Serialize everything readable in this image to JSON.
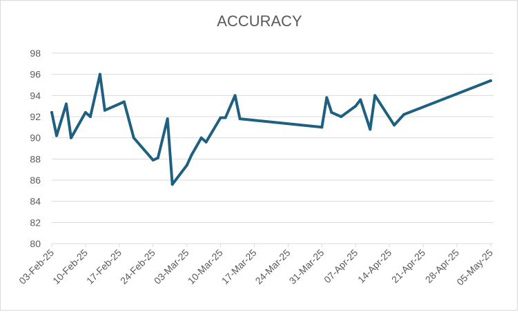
{
  "chart_data": {
    "type": "line",
    "title": "ACCURACY",
    "xlabel": "",
    "ylabel": "",
    "ylim": [
      80,
      98
    ],
    "y_ticks": [
      80,
      82,
      84,
      86,
      88,
      90,
      92,
      94,
      96,
      98
    ],
    "x_range": [
      "2025-02-03",
      "2025-05-05"
    ],
    "x_tick_labels": [
      "03-Feb-25",
      "10-Feb-25",
      "17-Feb-25",
      "24-Feb-25",
      "03-Mar-25",
      "10-Mar-25",
      "17-Mar-25",
      "24-Mar-25",
      "31-Mar-25",
      "07-Apr-25",
      "14-Apr-25",
      "21-Apr-25",
      "28-Apr-25",
      "05-May-25"
    ],
    "grid": true,
    "legend": "none",
    "series": [
      {
        "color": "#1f5f7f",
        "points": [
          [
            "2025-02-03",
            92.4
          ],
          [
            "2025-02-04",
            90.2
          ],
          [
            "2025-02-06",
            93.2
          ],
          [
            "2025-02-07",
            90.0
          ],
          [
            "2025-02-10",
            92.4
          ],
          [
            "2025-02-11",
            92.0
          ],
          [
            "2025-02-13",
            96.0
          ],
          [
            "2025-02-14",
            92.6
          ],
          [
            "2025-02-18",
            93.4
          ],
          [
            "2025-02-20",
            90.0
          ],
          [
            "2025-02-24",
            87.9
          ],
          [
            "2025-02-25",
            88.1
          ],
          [
            "2025-02-27",
            91.8
          ],
          [
            "2025-02-28",
            85.6
          ],
          [
            "2025-03-03",
            87.4
          ],
          [
            "2025-03-04",
            88.4
          ],
          [
            "2025-03-06",
            90.0
          ],
          [
            "2025-03-07",
            89.6
          ],
          [
            "2025-03-10",
            91.9
          ],
          [
            "2025-03-11",
            91.9
          ],
          [
            "2025-03-13",
            94.0
          ],
          [
            "2025-03-14",
            91.8
          ],
          [
            "2025-03-31",
            91.0
          ],
          [
            "2025-04-01",
            93.8
          ],
          [
            "2025-04-02",
            92.4
          ],
          [
            "2025-04-04",
            92.0
          ],
          [
            "2025-04-07",
            93.0
          ],
          [
            "2025-04-08",
            93.6
          ],
          [
            "2025-04-10",
            90.8
          ],
          [
            "2025-04-11",
            94.0
          ],
          [
            "2025-04-15",
            91.2
          ],
          [
            "2025-04-17",
            92.2
          ],
          [
            "2025-05-05",
            95.4
          ]
        ]
      }
    ]
  }
}
